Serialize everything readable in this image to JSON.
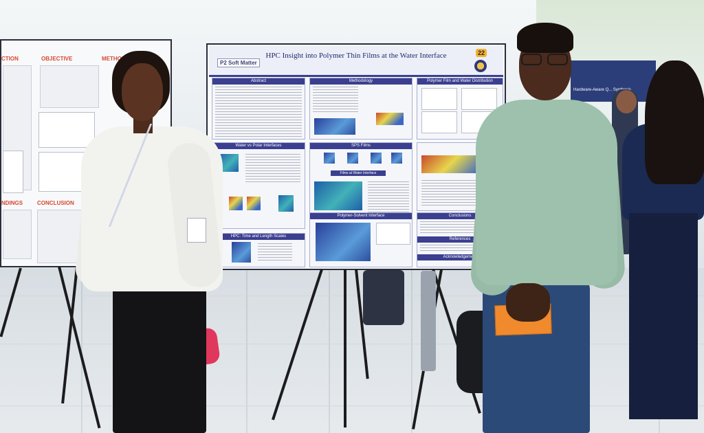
{
  "poster_main": {
    "title": "HPC Insight into Polymer Thin Films at the Water Interface",
    "logo": "P2 Soft Matter",
    "number": "22",
    "sections": [
      "Abstract",
      "Methodology",
      "Polymer Film and Water Distribution",
      "Water vs Polar Interfaces",
      "SPS Films",
      "HPC: Time and Length Scales",
      "Polymer-Solvent Interface",
      "Conclusions",
      "References",
      "Acknowledgement"
    ],
    "sub_header": "Films at Water Interface"
  },
  "poster_left": {
    "headings": [
      "CTION",
      "OBJECTIVE",
      "METHOD",
      "NDINGS",
      "CONCLUSION"
    ]
  },
  "poster_right": {
    "heading": "Hardware-Aware Q... Synthesis"
  },
  "colors": {
    "poster_navy": "#3b3f8f",
    "heading_red": "#d8482f",
    "sweater_green": "#9ec1ad",
    "folder_orange": "#f08a2c",
    "number_tag": "#f3b233"
  }
}
